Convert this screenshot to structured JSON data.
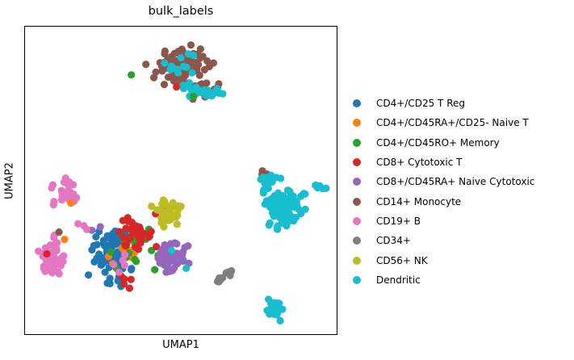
{
  "figure": {
    "title": "bulk_labels",
    "xlabel": "UMAP1",
    "ylabel": "UMAP2",
    "background_color": "#ffffff",
    "spine_color": "#000000",
    "text_color": "#000000"
  },
  "chart_data": {
    "type": "scatter",
    "title": "bulk_labels",
    "xlabel": "UMAP1",
    "ylabel": "UMAP2",
    "xlim": [
      0,
      10
    ],
    "ylim": [
      0,
      10
    ],
    "grid": false,
    "ticks_visible": false,
    "legend_position": "right-outside",
    "marker_radius_px": 4.6,
    "series": [
      {
        "name": "CD4+/CD25 T Reg",
        "color": "#1f77b4",
        "blobs": [
          {
            "x": 2.84,
            "y": 2.48,
            "rx": 0.85,
            "ry": 1.1,
            "n": 75
          },
          {
            "x": 3.1,
            "y": 3.05,
            "rx": 0.55,
            "ry": 0.5,
            "n": 15
          }
        ],
        "points": []
      },
      {
        "name": "CD4+/CD45RA+/CD25- Naive T",
        "color": "#ff7f0e",
        "blobs": [
          {
            "x": 3.23,
            "y": 2.6,
            "rx": 0.85,
            "ry": 0.85,
            "n": 8
          }
        ],
        "points": [
          [
            1.47,
            4.26
          ],
          [
            1.27,
            3.08
          ]
        ]
      },
      {
        "name": "CD4+/CD45RO+ Memory",
        "color": "#2ca02c",
        "blobs": [
          {
            "x": 3.49,
            "y": 2.74,
            "rx": 1.1,
            "ry": 1.1,
            "n": 18
          }
        ],
        "points": [
          [
            5.4,
            7.73
          ],
          [
            3.41,
            8.43
          ]
        ]
      },
      {
        "name": "CD8+ Cytotoxic T",
        "color": "#d62728",
        "blobs": [
          {
            "x": 3.57,
            "y": 3.21,
            "rx": 0.75,
            "ry": 0.7,
            "n": 40
          },
          {
            "x": 4.39,
            "y": 3.84,
            "rx": 0.3,
            "ry": 0.3,
            "n": 6
          },
          {
            "x": 3.23,
            "y": 1.7,
            "rx": 0.38,
            "ry": 0.38,
            "n": 5
          }
        ],
        "points": [
          [
            4.86,
            8.04
          ],
          [
            0.7,
            2.61
          ]
        ]
      },
      {
        "name": "CD8+/CD45RA+ Naive Cytotoxic",
        "color": "#9467bd",
        "blobs": [
          {
            "x": 4.7,
            "y": 2.48,
            "rx": 0.65,
            "ry": 0.62,
            "n": 45
          },
          {
            "x": 2.33,
            "y": 3.47,
            "rx": 0.2,
            "ry": 0.2,
            "n": 2
          }
        ],
        "points": []
      },
      {
        "name": "CD14+ Monocyte",
        "color": "#8c564b",
        "blobs": [
          {
            "x": 5.04,
            "y": 8.75,
            "rx": 1.15,
            "ry": 0.72,
            "n": 110
          },
          {
            "x": 5.74,
            "y": 7.96,
            "rx": 0.75,
            "ry": 0.36,
            "n": 25
          },
          {
            "x": 7.6,
            "y": 5.2,
            "rx": 0.2,
            "ry": 0.2,
            "n": 3
          }
        ],
        "points": [
          [
            1.09,
            3.32
          ]
        ]
      },
      {
        "name": "CD19+ B",
        "color": "#e377c2",
        "blobs": [
          {
            "x": 1.34,
            "y": 4.57,
            "rx": 0.56,
            "ry": 0.56,
            "n": 32
          },
          {
            "x": 1.81,
            "y": 3.52,
            "rx": 0.25,
            "ry": 0.25,
            "n": 3
          },
          {
            "x": 0.85,
            "y": 2.53,
            "rx": 0.6,
            "ry": 0.76,
            "n": 50
          },
          {
            "x": 2.92,
            "y": 2.14,
            "rx": 0.63,
            "ry": 0.76,
            "n": 5
          }
        ],
        "points": []
      },
      {
        "name": "CD34+",
        "color": "#7f7f7f",
        "blobs": [
          {
            "x": 6.25,
            "y": 1.78,
            "rx": 0.17,
            "ry": 0.17,
            "n": 6
          },
          {
            "x": 6.56,
            "y": 2.01,
            "rx": 0.17,
            "ry": 0.17,
            "n": 6
          }
        ],
        "points": []
      },
      {
        "name": "CD56+ NK",
        "color": "#bcbd22",
        "blobs": [
          {
            "x": 4.57,
            "y": 3.89,
            "rx": 0.6,
            "ry": 0.55,
            "n": 45
          }
        ],
        "points": []
      },
      {
        "name": "Dendritic",
        "color": "#17becf",
        "blobs": [
          {
            "x": 5.63,
            "y": 7.91,
            "rx": 1.0,
            "ry": 0.4,
            "n": 30
          },
          {
            "x": 4.91,
            "y": 8.75,
            "rx": 0.88,
            "ry": 0.55,
            "n": 12
          },
          {
            "x": 8.27,
            "y": 4.1,
            "rx": 0.76,
            "ry": 0.82,
            "n": 110
          },
          {
            "x": 7.83,
            "y": 5.04,
            "rx": 0.45,
            "ry": 0.2,
            "n": 10
          },
          {
            "x": 8.91,
            "y": 4.57,
            "rx": 0.25,
            "ry": 0.12,
            "n": 4
          },
          {
            "x": 9.43,
            "y": 4.78,
            "rx": 0.35,
            "ry": 0.15,
            "n": 6
          },
          {
            "x": 7.96,
            "y": 0.84,
            "rx": 0.33,
            "ry": 0.46,
            "n": 28
          }
        ],
        "points": [
          [
            4.7,
            2.72
          ],
          [
            5.17,
            2.14
          ]
        ]
      }
    ]
  }
}
